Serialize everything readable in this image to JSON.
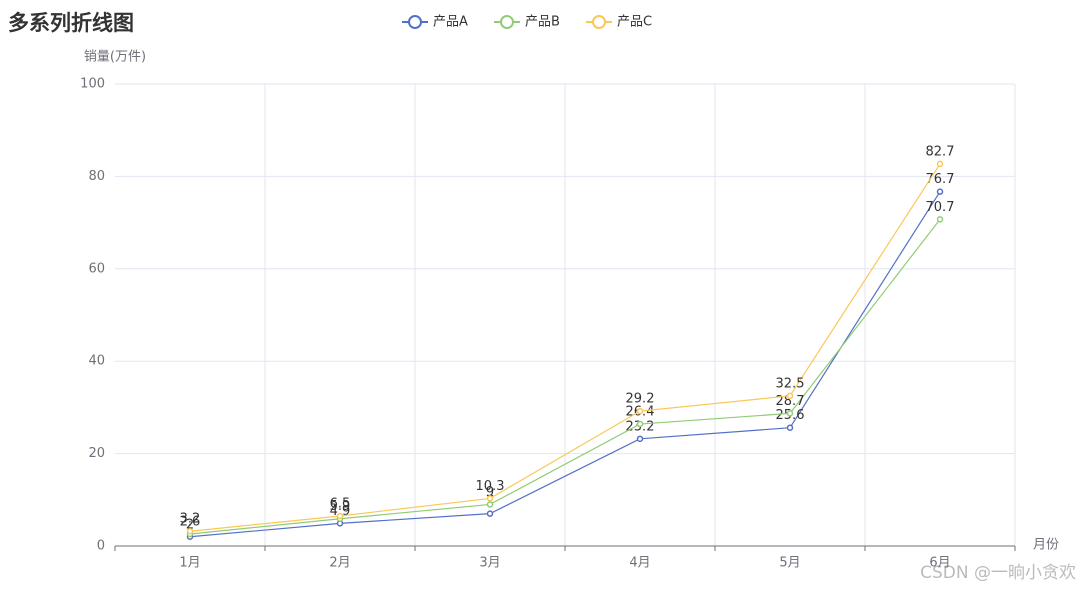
{
  "chart_data": {
    "type": "line",
    "title": "多系列折线图",
    "y_label": "销量(万件)",
    "x_label": "月份",
    "categories": [
      "1月",
      "2月",
      "3月",
      "4月",
      "5月",
      "6月"
    ],
    "series": [
      {
        "name": "产品A",
        "color": "#5470c6",
        "values": [
          2,
          4.9,
          7,
          23.2,
          25.6,
          76.7
        ]
      },
      {
        "name": "产品B",
        "color": "#91cc75",
        "values": [
          2.6,
          5.9,
          9,
          26.4,
          28.7,
          70.7
        ]
      },
      {
        "name": "产品C",
        "color": "#fac858",
        "values": [
          3.2,
          6.5,
          10.3,
          29.2,
          32.5,
          82.7
        ]
      }
    ],
    "ylim": [
      0,
      100
    ],
    "yticks": [
      0,
      20,
      40,
      60,
      80,
      100
    ],
    "grid": true,
    "legend": "top",
    "watermark": "CSDN @一晌小贪欢"
  }
}
